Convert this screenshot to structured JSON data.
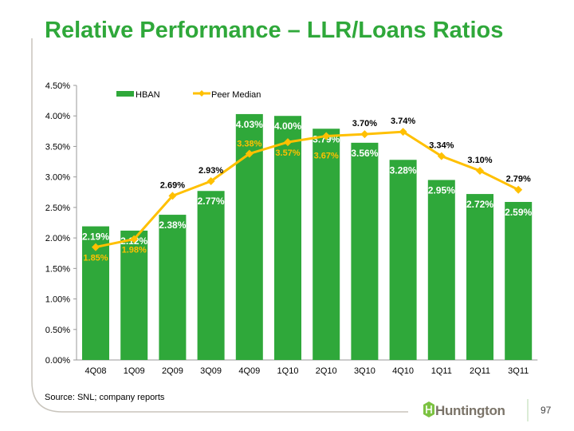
{
  "slide": {
    "title": "Relative Performance – LLR/Loans Ratios",
    "source": "Source: SNL; company reports",
    "page_number": "97",
    "logo_text": "Huntington"
  },
  "colors": {
    "bar": "#2fa83a",
    "line": "#ffc000",
    "title": "#2fa83a"
  },
  "chart_data": {
    "type": "bar",
    "title": "",
    "xlabel": "",
    "ylabel": "",
    "ylim": [
      0,
      4.5
    ],
    "yticks": [
      "0.00%",
      "0.50%",
      "1.00%",
      "1.50%",
      "2.00%",
      "2.50%",
      "3.00%",
      "3.50%",
      "4.00%",
      "4.50%"
    ],
    "categories": [
      "4Q08",
      "1Q09",
      "2Q09",
      "3Q09",
      "4Q09",
      "1Q10",
      "2Q10",
      "3Q10",
      "4Q10",
      "1Q11",
      "2Q11",
      "3Q11"
    ],
    "legend_position": "top",
    "series": [
      {
        "name": "HBAN",
        "type": "bar",
        "values": [
          2.19,
          2.12,
          2.38,
          2.77,
          4.03,
          4.0,
          3.79,
          3.56,
          3.28,
          2.95,
          2.72,
          2.59
        ],
        "labels": [
          "2.19%",
          "2.12%",
          "2.38%",
          "2.77%",
          "4.03%",
          "4.00%",
          "3.79%",
          "3.56%",
          "3.28%",
          "2.95%",
          "2.72%",
          "2.59%"
        ]
      },
      {
        "name": "Peer Median",
        "type": "line",
        "values": [
          1.85,
          1.98,
          2.69,
          2.93,
          3.38,
          3.57,
          3.67,
          3.7,
          3.74,
          3.34,
          3.1,
          2.79
        ],
        "labels": [
          "1.85%",
          "1.98%",
          "2.69%",
          "2.93%",
          "3.38%",
          "3.57%",
          "3.67%",
          "3.70%",
          "3.74%",
          "3.34%",
          "3.10%",
          "2.79%"
        ]
      }
    ]
  }
}
